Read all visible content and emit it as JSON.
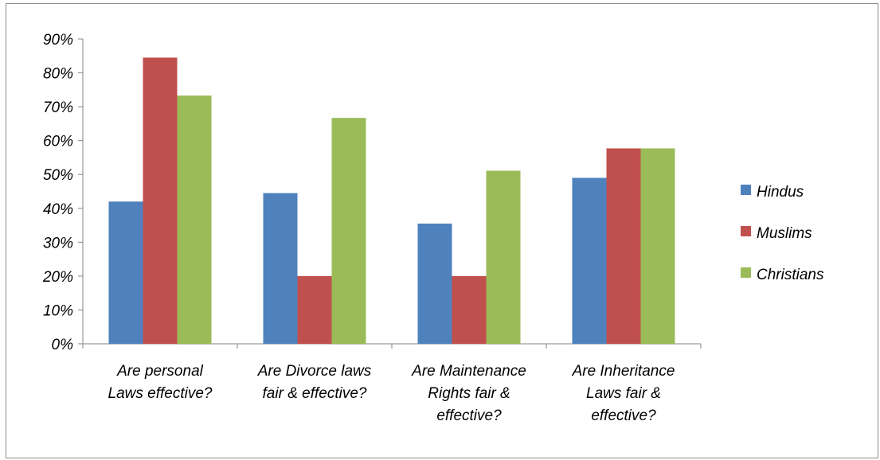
{
  "chart_data": {
    "type": "bar",
    "categories": [
      [
        "Are personal",
        "Laws effective?"
      ],
      [
        "Are Divorce laws",
        "fair & effective?"
      ],
      [
        "Are Maintenance",
        "Rights fair &",
        "effective?"
      ],
      [
        "Are Inheritance",
        "Laws fair &",
        "effective?"
      ]
    ],
    "series": [
      {
        "name": "Hindus",
        "color": "#4F81BD",
        "values": [
          42,
          44.5,
          35.5,
          49
        ]
      },
      {
        "name": "Muslims",
        "color": "#C0504D",
        "values": [
          84.5,
          20,
          20,
          57.7
        ]
      },
      {
        "name": "Christians",
        "color": "#9BBB59",
        "values": [
          73.3,
          66.7,
          51.1,
          57.7
        ]
      }
    ],
    "yticks": [
      "0%",
      "10%",
      "20%",
      "30%",
      "40%",
      "50%",
      "60%",
      "70%",
      "80%",
      "90%"
    ],
    "ylim": [
      0,
      90
    ],
    "grid": false,
    "legend_position": "right",
    "title": "",
    "xlabel": "",
    "ylabel": ""
  }
}
